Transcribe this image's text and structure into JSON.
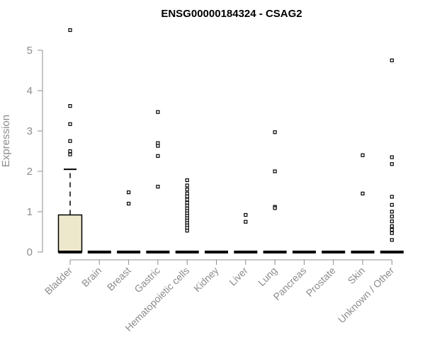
{
  "chart_data": {
    "type": "box",
    "title": "ENSG00000184324 - CSAG2",
    "xlabel": "",
    "ylabel": "Expression",
    "ylim": [
      0,
      5.5
    ],
    "yticks": [
      0,
      1,
      2,
      3,
      4,
      5
    ],
    "grid": false,
    "colors": {
      "box_fill": "#ede8cc",
      "stroke": "#000000",
      "axis": "#8c8c8c"
    },
    "categories": [
      "Bladder",
      "Brain",
      "Breast",
      "Gastric",
      "Hematopoietic cells",
      "Kidney",
      "Liver",
      "Lung",
      "Pancreas",
      "Prostate",
      "Skin",
      "Unknown / Other"
    ],
    "boxes": [
      {
        "category": "Bladder",
        "q1": 0,
        "median": 0,
        "q3": 0.92,
        "whisker_low": 0,
        "whisker_high": 2.05,
        "outliers": [
          5.5,
          3.62,
          3.17,
          2.75,
          2.5,
          2.42
        ]
      },
      {
        "category": "Brain",
        "q1": 0,
        "median": 0,
        "q3": 0,
        "whisker_low": 0,
        "whisker_high": 0,
        "outliers": []
      },
      {
        "category": "Breast",
        "q1": 0,
        "median": 0,
        "q3": 0,
        "whisker_low": 0,
        "whisker_high": 0,
        "outliers": [
          1.48,
          1.2
        ]
      },
      {
        "category": "Gastric",
        "q1": 0,
        "median": 0,
        "q3": 0,
        "whisker_low": 0,
        "whisker_high": 0,
        "outliers": [
          3.47,
          2.7,
          2.63,
          2.38,
          1.62
        ]
      },
      {
        "category": "Hematopoietic cells",
        "q1": 0,
        "median": 0,
        "q3": 0,
        "whisker_low": 0,
        "whisker_high": 0,
        "outliers": [
          1.78,
          1.65,
          1.55,
          1.45,
          1.38,
          1.3,
          1.22,
          1.15,
          1.08,
          1.02,
          0.96,
          0.9,
          0.84,
          0.78,
          0.72,
          0.66,
          0.6,
          0.53
        ]
      },
      {
        "category": "Kidney",
        "q1": 0,
        "median": 0,
        "q3": 0,
        "whisker_low": 0,
        "whisker_high": 0,
        "outliers": []
      },
      {
        "category": "Liver",
        "q1": 0,
        "median": 0,
        "q3": 0,
        "whisker_low": 0,
        "whisker_high": 0,
        "outliers": [
          0.92,
          0.75
        ]
      },
      {
        "category": "Lung",
        "q1": 0,
        "median": 0,
        "q3": 0,
        "whisker_low": 0,
        "whisker_high": 0,
        "outliers": [
          2.97,
          2.0,
          1.12,
          1.09
        ]
      },
      {
        "category": "Pancreas",
        "q1": 0,
        "median": 0,
        "q3": 0,
        "whisker_low": 0,
        "whisker_high": 0,
        "outliers": []
      },
      {
        "category": "Prostate",
        "q1": 0,
        "median": 0,
        "q3": 0,
        "whisker_low": 0,
        "whisker_high": 0,
        "outliers": []
      },
      {
        "category": "Skin",
        "q1": 0,
        "median": 0,
        "q3": 0,
        "whisker_low": 0,
        "whisker_high": 0,
        "outliers": [
          2.4,
          1.45
        ]
      },
      {
        "category": "Unknown / Other",
        "q1": 0,
        "median": 0,
        "q3": 0,
        "whisker_low": 0,
        "whisker_high": 0,
        "outliers": [
          4.75,
          2.35,
          2.18,
          1.37,
          1.17,
          1.0,
          0.88,
          0.76,
          0.64,
          0.55,
          0.47,
          0.3
        ]
      }
    ]
  }
}
